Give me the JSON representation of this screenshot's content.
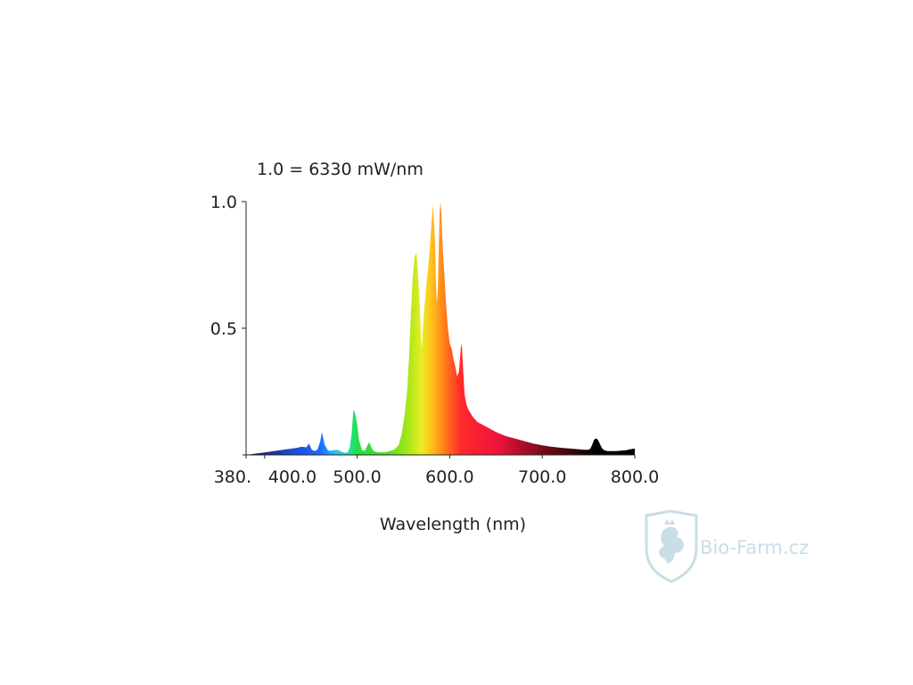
{
  "chart_data": {
    "type": "area",
    "title": "1.0 = 6330 mW/nm",
    "xlabel": "Wavelength (nm)",
    "ylabel": "",
    "xlim": [
      380,
      800
    ],
    "ylim": [
      0,
      1.0
    ],
    "x_ticks": [
      {
        "value": 380,
        "label": "380."
      },
      {
        "value": 400,
        "label": "400.0"
      },
      {
        "value": 500,
        "label": "500.0"
      },
      {
        "value": 600,
        "label": "600.0"
      },
      {
        "value": 700,
        "label": "700.0"
      },
      {
        "value": 800,
        "label": "800.0"
      }
    ],
    "y_ticks": [
      {
        "value": 0.5,
        "label": "0.5"
      },
      {
        "value": 1.0,
        "label": "1.0"
      }
    ],
    "grid": false,
    "series": [
      {
        "x": [
          380,
          390,
          400,
          410,
          420,
          430,
          435,
          440,
          445,
          448,
          451,
          454,
          457,
          460,
          462,
          465,
          468,
          470,
          474,
          478,
          482,
          485,
          488,
          490,
          492,
          494,
          496,
          498,
          500,
          502,
          505,
          508,
          510,
          513,
          516,
          518,
          520,
          525,
          530,
          535,
          540,
          545,
          548,
          551,
          554,
          556,
          558,
          560,
          562,
          564,
          566,
          568,
          569,
          570,
          571,
          573,
          575,
          577,
          579,
          580,
          582,
          584,
          585,
          586,
          587,
          588,
          589,
          590,
          591,
          592,
          593,
          594,
          596,
          598,
          600,
          602,
          604,
          606,
          608,
          610,
          612,
          613,
          615,
          616,
          618,
          620,
          625,
          630,
          640,
          650,
          660,
          670,
          680,
          690,
          700,
          710,
          720,
          730,
          740,
          745,
          750,
          752,
          754,
          756,
          758,
          760,
          762,
          764,
          766,
          770,
          780,
          790,
          795,
          800
        ],
        "y": [
          0.0,
          0.005,
          0.01,
          0.015,
          0.02,
          0.025,
          0.028,
          0.032,
          0.03,
          0.045,
          0.02,
          0.015,
          0.02,
          0.05,
          0.09,
          0.04,
          0.02,
          0.015,
          0.018,
          0.02,
          0.015,
          0.01,
          0.008,
          0.012,
          0.03,
          0.08,
          0.18,
          0.16,
          0.12,
          0.06,
          0.02,
          0.015,
          0.03,
          0.05,
          0.025,
          0.015,
          0.012,
          0.01,
          0.01,
          0.015,
          0.02,
          0.04,
          0.08,
          0.15,
          0.25,
          0.38,
          0.55,
          0.7,
          0.78,
          0.8,
          0.7,
          0.55,
          0.46,
          0.42,
          0.5,
          0.6,
          0.68,
          0.75,
          0.84,
          0.9,
          0.99,
          0.85,
          0.7,
          0.6,
          0.64,
          0.78,
          0.95,
          1.0,
          0.96,
          0.85,
          0.78,
          0.72,
          0.6,
          0.5,
          0.44,
          0.42,
          0.38,
          0.35,
          0.31,
          0.33,
          0.42,
          0.44,
          0.3,
          0.24,
          0.2,
          0.18,
          0.15,
          0.13,
          0.11,
          0.09,
          0.075,
          0.065,
          0.055,
          0.045,
          0.038,
          0.032,
          0.028,
          0.025,
          0.022,
          0.02,
          0.02,
          0.025,
          0.04,
          0.06,
          0.065,
          0.06,
          0.045,
          0.03,
          0.02,
          0.015,
          0.015,
          0.018,
          0.022,
          0.025
        ]
      }
    ],
    "colors": {
      "spectrum_stops": [
        {
          "nm": 380,
          "color": "#1a0f4a"
        },
        {
          "nm": 420,
          "color": "#1f3fbf"
        },
        {
          "nm": 460,
          "color": "#1a6dff"
        },
        {
          "nm": 475,
          "color": "#26b7ff"
        },
        {
          "nm": 488,
          "color": "#1fe0c0"
        },
        {
          "nm": 500,
          "color": "#22e04a"
        },
        {
          "nm": 530,
          "color": "#47e01d"
        },
        {
          "nm": 555,
          "color": "#a8e61a"
        },
        {
          "nm": 570,
          "color": "#e9ee22"
        },
        {
          "nm": 580,
          "color": "#ffc21a"
        },
        {
          "nm": 595,
          "color": "#ff7a1a"
        },
        {
          "nm": 612,
          "color": "#ff2a2a"
        },
        {
          "nm": 650,
          "color": "#f0143c"
        },
        {
          "nm": 700,
          "color": "#7a0a1a"
        },
        {
          "nm": 740,
          "color": "#2a0505"
        },
        {
          "nm": 760,
          "color": "#000000"
        },
        {
          "nm": 800,
          "color": "#000000"
        }
      ],
      "axis": "#222222",
      "watermark": "#c9dde6"
    }
  },
  "watermark": {
    "text": "Bio-Farm.cz",
    "icon": "lion-shield-icon"
  }
}
